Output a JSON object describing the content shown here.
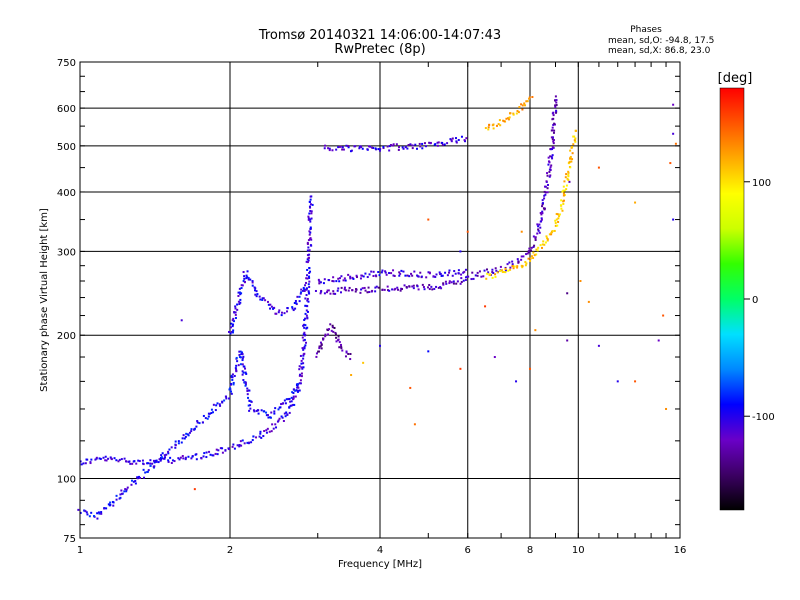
{
  "chart_data": {
    "type": "scatter",
    "title": "Tromsø 20140321 14:06:00-14:07:43",
    "subtitle": "RwPretec (8p)",
    "xlabel": "Frequency [MHz]",
    "ylabel": "Stationary phase Virtual Height [km]",
    "x_scale": "log",
    "y_scale": "log",
    "xlim": [
      1,
      16
    ],
    "ylim": [
      75,
      750
    ],
    "x_ticks": [
      1,
      2,
      4,
      6,
      8,
      10,
      16
    ],
    "y_ticks": [
      75,
      100,
      200,
      300,
      400,
      500,
      600,
      750
    ],
    "grid": true,
    "stats": {
      "title": "Phases",
      "line_o": "mean, sd,O: -94.8, 17.5",
      "line_x": "mean, sd,X:  86.8, 23.0"
    },
    "colorbar": {
      "label": "[deg]",
      "range": [
        -180,
        180
      ],
      "ticks": [
        100,
        0,
        -100
      ],
      "colors": [
        "#000000",
        "#3c0064",
        "#6a00c8",
        "#0000ff",
        "#0088ff",
        "#00e0ff",
        "#00ff66",
        "#33ff00",
        "#ccff00",
        "#ffff00",
        "#ffaa00",
        "#ff5500",
        "#ff0000"
      ]
    },
    "traces": [
      {
        "name": "",
        "phase": -105,
        "points": [
          [
            1.0,
            108
          ],
          [
            1.05,
            109
          ],
          [
            1.1,
            110
          ],
          [
            1.4,
            108
          ],
          [
            1.5,
            109
          ],
          [
            1.6,
            110
          ],
          [
            1.8,
            112
          ],
          [
            2.0,
            116
          ],
          [
            2.2,
            120
          ],
          [
            2.4,
            126
          ],
          [
            2.6,
            136
          ],
          [
            2.75,
            155
          ],
          [
            2.8,
            180
          ],
          [
            2.85,
            230
          ],
          [
            2.88,
            290
          ],
          [
            2.9,
            350
          ],
          [
            2.92,
            395
          ]
        ]
      },
      {
        "name": "",
        "phase": -100,
        "points": [
          [
            2.0,
            200
          ],
          [
            2.05,
            220
          ],
          [
            2.1,
            250
          ],
          [
            2.15,
            270
          ],
          [
            2.3,
            240
          ],
          [
            2.5,
            222
          ],
          [
            2.7,
            230
          ],
          [
            2.85,
            260
          ]
        ]
      },
      {
        "name": "",
        "phase": -95,
        "points": [
          [
            1.0,
            86
          ],
          [
            1.04,
            84
          ],
          [
            1.08,
            83
          ],
          [
            2.0,
            150
          ],
          [
            2.05,
            170
          ],
          [
            2.1,
            185
          ],
          [
            2.2,
            140
          ],
          [
            2.4,
            135
          ],
          [
            2.6,
            145
          ],
          [
            2.75,
            160
          ]
        ]
      },
      {
        "name": "",
        "phase": -120,
        "points": [
          [
            3.0,
            245
          ],
          [
            3.3,
            248
          ],
          [
            4.0,
            250
          ],
          [
            5.0,
            252
          ],
          [
            5.7,
            258
          ],
          [
            6.0,
            265
          ],
          [
            6.5,
            270
          ],
          [
            7.0,
            275
          ],
          [
            7.5,
            285
          ],
          [
            8.0,
            300
          ],
          [
            8.3,
            330
          ],
          [
            8.5,
            370
          ],
          [
            8.7,
            430
          ],
          [
            8.85,
            500
          ],
          [
            8.95,
            580
          ],
          [
            9.0,
            640
          ]
        ]
      },
      {
        "name": "",
        "phase": -110,
        "points": [
          [
            3.0,
            260
          ],
          [
            3.5,
            265
          ],
          [
            4.0,
            270
          ],
          [
            4.5,
            270
          ],
          [
            5.0,
            268
          ],
          [
            5.5,
            270
          ],
          [
            6.0,
            272
          ]
        ]
      },
      {
        "name": "",
        "phase": 110,
        "points": [
          [
            6.5,
            265
          ],
          [
            7.0,
            270
          ],
          [
            7.5,
            278
          ],
          [
            8.0,
            288
          ],
          [
            8.5,
            310
          ],
          [
            9.0,
            340
          ],
          [
            9.3,
            380
          ],
          [
            9.5,
            430
          ],
          [
            9.7,
            480
          ],
          [
            9.9,
            540
          ]
        ]
      },
      {
        "name": "",
        "phase": -135,
        "points": [
          [
            3.0,
            180
          ],
          [
            3.1,
            200
          ],
          [
            3.2,
            210
          ],
          [
            3.3,
            195
          ],
          [
            3.4,
            185
          ],
          [
            3.5,
            178
          ]
        ]
      },
      {
        "name": "",
        "phase": -110,
        "points": [
          [
            3.1,
            495
          ],
          [
            3.5,
            493
          ],
          [
            4.0,
            495
          ],
          [
            4.5,
            498
          ],
          [
            5.0,
            502
          ],
          [
            5.5,
            510
          ],
          [
            6.0,
            518
          ]
        ]
      },
      {
        "name": "",
        "phase": 120,
        "points": [
          [
            6.5,
            545
          ],
          [
            7.0,
            560
          ],
          [
            7.5,
            590
          ],
          [
            7.9,
            620
          ],
          [
            8.1,
            630
          ]
        ]
      }
    ],
    "scatter_points": [
      [
        1.6,
        215,
        -110
      ],
      [
        1.7,
        95,
        160
      ],
      [
        3.5,
        165,
        120
      ],
      [
        3.7,
        175,
        110
      ],
      [
        4.0,
        190,
        -100
      ],
      [
        4.6,
        155,
        150
      ],
      [
        4.7,
        130,
        140
      ],
      [
        5.0,
        185,
        -90
      ],
      [
        5.8,
        170,
        160
      ],
      [
        6.8,
        180,
        -120
      ],
      [
        7.5,
        160,
        -100
      ],
      [
        8.0,
        170,
        150
      ],
      [
        9.5,
        195,
        -130
      ],
      [
        10.5,
        235,
        130
      ],
      [
        11.0,
        190,
        -110
      ],
      [
        12.0,
        160,
        -100
      ],
      [
        13.0,
        160,
        150
      ],
      [
        14.5,
        195,
        -120
      ],
      [
        15.0,
        140,
        130
      ],
      [
        15.5,
        350,
        -100
      ],
      [
        15.3,
        460,
        150
      ],
      [
        15.5,
        530,
        -110
      ],
      [
        15.7,
        505,
        140
      ],
      [
        13.0,
        380,
        120
      ],
      [
        11.0,
        450,
        150
      ],
      [
        5.0,
        350,
        150
      ],
      [
        6.0,
        330,
        150
      ],
      [
        5.8,
        300,
        -100
      ],
      [
        9.6,
        420,
        -130
      ],
      [
        15.5,
        610,
        -120
      ],
      [
        14.8,
        220,
        150
      ],
      [
        7.7,
        330,
        130
      ],
      [
        8.2,
        205,
        130
      ],
      [
        9.5,
        245,
        -140
      ],
      [
        10.1,
        260,
        130
      ],
      [
        6.5,
        230,
        160
      ]
    ]
  }
}
